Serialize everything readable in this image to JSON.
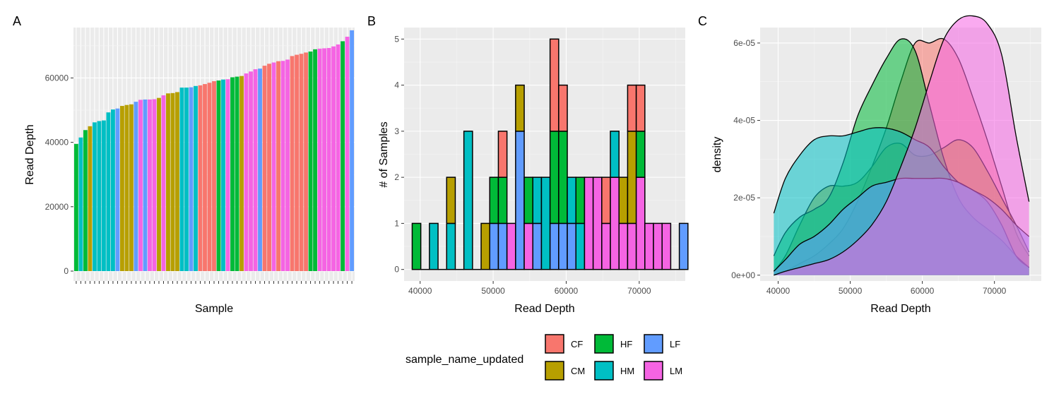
{
  "chart_data": [
    {
      "panel": "A",
      "type": "bar",
      "xlabel": "Sample",
      "ylabel": "Read Depth",
      "ylim": [
        0,
        75000
      ],
      "yticks": [
        0,
        20000,
        40000,
        60000
      ],
      "ytick_labels": [
        "0",
        "20000",
        "40000",
        "60000"
      ],
      "grid": true,
      "values": [
        39500,
        41500,
        43800,
        45000,
        46200,
        46600,
        46800,
        49300,
        50200,
        50500,
        51300,
        51600,
        51800,
        52600,
        53200,
        53300,
        53300,
        53400,
        53800,
        54600,
        55200,
        55300,
        55600,
        57000,
        57000,
        57100,
        57500,
        57700,
        58100,
        58500,
        59000,
        59200,
        59500,
        59600,
        60200,
        60400,
        60600,
        61400,
        62000,
        62700,
        62900,
        63800,
        64400,
        64800,
        65200,
        65300,
        65700,
        66800,
        67200,
        67500,
        67900,
        68200,
        68900,
        69100,
        69200,
        69300,
        69800,
        70400,
        71400,
        72800,
        74800
      ],
      "groups": [
        "HF",
        "HM",
        "HF",
        "CM",
        "HM",
        "HM",
        "HM",
        "HM",
        "HM",
        "LF",
        "CM",
        "CM",
        "CM",
        "LF",
        "LM",
        "LF",
        "LM",
        "LM",
        "CM",
        "LM",
        "CM",
        "CM",
        "CM",
        "HM",
        "HM",
        "LF",
        "HM",
        "CF",
        "CF",
        "CF",
        "CF",
        "HF",
        "HM",
        "LM",
        "HF",
        "HF",
        "CM",
        "LM",
        "LM",
        "LM",
        "LF",
        "CF",
        "CF",
        "LM",
        "CF",
        "LM",
        "LM",
        "CF",
        "CF",
        "CF",
        "CF",
        "HF",
        "HF",
        "LM",
        "LM",
        "LM",
        "LM",
        "LM",
        "HF",
        "LM",
        "LF"
      ]
    },
    {
      "panel": "B",
      "type": "bar",
      "stacked": true,
      "xlabel": "Read Depth",
      "ylabel": "# of Samples",
      "xlim": [
        37800,
        76300
      ],
      "ylim": [
        -0.25,
        5.25
      ],
      "xticks": [
        40000,
        50000,
        60000,
        70000
      ],
      "xtick_labels": [
        "40000",
        "50000",
        "60000",
        "70000"
      ],
      "yticks": [
        0,
        1,
        2,
        3,
        4,
        5
      ],
      "ytick_labels": [
        "0",
        "1",
        "2",
        "3",
        "4",
        "5"
      ],
      "grid": true,
      "bin_width": 1180,
      "bins": [
        {
          "x": 39500,
          "counts": {
            "HF": 1
          }
        },
        {
          "x": 40680,
          "counts": {}
        },
        {
          "x": 41860,
          "counts": {
            "HM": 1
          }
        },
        {
          "x": 43040,
          "counts": {}
        },
        {
          "x": 44220,
          "counts": {
            "HM": 1,
            "CM": 1
          }
        },
        {
          "x": 45400,
          "counts": {}
        },
        {
          "x": 46580,
          "counts": {
            "HM": 3
          }
        },
        {
          "x": 47760,
          "counts": {}
        },
        {
          "x": 48940,
          "counts": {
            "CM": 1
          }
        },
        {
          "x": 50120,
          "counts": {
            "LF": 1,
            "HF": 1
          }
        },
        {
          "x": 51300,
          "counts": {
            "LF": 1,
            "HF": 1,
            "CF": 1
          }
        },
        {
          "x": 52480,
          "counts": {
            "LM": 1
          }
        },
        {
          "x": 53660,
          "counts": {
            "LF": 3,
            "CM": 1
          }
        },
        {
          "x": 54840,
          "counts": {
            "LM": 1,
            "HF": 1
          }
        },
        {
          "x": 56020,
          "counts": {
            "LF": 1,
            "HM": 1
          }
        },
        {
          "x": 57200,
          "counts": {
            "HM": 2
          }
        },
        {
          "x": 58380,
          "counts": {
            "LF": 1,
            "HF": 2,
            "CF": 2
          }
        },
        {
          "x": 59560,
          "counts": {
            "LF": 1,
            "HF": 2,
            "CF": 1
          }
        },
        {
          "x": 60740,
          "counts": {
            "LF": 1,
            "HM": 1
          }
        },
        {
          "x": 61920,
          "counts": {
            "HF": 1,
            "HM": 1
          }
        },
        {
          "x": 63100,
          "counts": {
            "LM": 2
          }
        },
        {
          "x": 64280,
          "counts": {
            "LM": 2
          }
        },
        {
          "x": 65460,
          "counts": {
            "LM": 1,
            "CF": 1
          }
        },
        {
          "x": 66640,
          "counts": {
            "LM": 2,
            "HM": 1
          }
        },
        {
          "x": 67820,
          "counts": {
            "LM": 1,
            "CM": 1
          }
        },
        {
          "x": 69000,
          "counts": {
            "LM": 1,
            "CM": 2,
            "CF": 1
          }
        },
        {
          "x": 70180,
          "counts": {
            "LM": 2,
            "HF": 1,
            "CF": 1
          }
        },
        {
          "x": 71360,
          "counts": {
            "LM": 1
          }
        },
        {
          "x": 72540,
          "counts": {
            "LM": 1
          }
        },
        {
          "x": 73720,
          "counts": {
            "LM": 1
          }
        },
        {
          "x": 74900,
          "counts": {}
        },
        {
          "x": 76080,
          "counts": {
            "LF": 1
          }
        }
      ]
    },
    {
      "panel": "C",
      "type": "area",
      "xlabel": "Read Depth",
      "ylabel": "density",
      "xlim": [
        37500,
        76500
      ],
      "ylim": [
        -1.5e-06,
        6.4e-05
      ],
      "xticks": [
        40000,
        50000,
        60000,
        70000
      ],
      "xtick_labels": [
        "40000",
        "50000",
        "60000",
        "70000"
      ],
      "yticks": [
        0,
        2e-05,
        4e-05,
        6e-05
      ],
      "ytick_labels": [
        "0e+00",
        "2e-05",
        "4e-05",
        "6e-05"
      ],
      "grid": true,
      "x": [
        39400,
        41000,
        43000,
        45000,
        47000,
        49000,
        51000,
        53000,
        55000,
        57000,
        59000,
        61000,
        63000,
        65000,
        67000,
        69000,
        71000,
        73000,
        74800
      ],
      "series": [
        {
          "group": "CF",
          "values": [
            0.0,
            1e-06,
            3e-06,
            5e-06,
            8e-06,
            1.2e-05,
            1.9e-05,
            2.8e-05,
            3.8e-05,
            5e-05,
            6e-05,
            6e-05,
            6.1e-05,
            5.6e-05,
            4.6e-05,
            3.5e-05,
            2.3e-05,
            1.1e-05,
            5e-06
          ]
        },
        {
          "group": "CM",
          "values": [
            1e-06,
            5e-06,
            1.3e-05,
            2e-05,
            2.3e-05,
            2.3e-05,
            2.4e-05,
            2.8e-05,
            3.3e-05,
            3.4e-05,
            3.1e-05,
            3.1e-05,
            3.3e-05,
            3.5e-05,
            3.3e-05,
            2.7e-05,
            2e-05,
            1.3e-05,
            6e-06
          ]
        },
        {
          "group": "HF",
          "values": [
            5e-06,
            1.1e-05,
            1.5e-05,
            1.7e-05,
            2e-05,
            2.9e-05,
            4.1e-05,
            4.9e-05,
            5.6e-05,
            6.1e-05,
            5.8e-05,
            4.4e-05,
            3e-05,
            2e-05,
            1.5e-05,
            1.2e-05,
            9e-06,
            5e-06,
            2e-06
          ]
        },
        {
          "group": "HM",
          "values": [
            1.6e-05,
            2.5e-05,
            3.1e-05,
            3.5e-05,
            3.6e-05,
            3.6e-05,
            3.7e-05,
            3.8e-05,
            3.8e-05,
            3.7e-05,
            3.5e-05,
            3.3e-05,
            2.8e-05,
            2.4e-05,
            2.2e-05,
            1.9e-05,
            1.3e-05,
            5e-06,
            2e-06
          ]
        },
        {
          "group": "LF",
          "values": [
            1e-06,
            4e-06,
            8e-06,
            1e-05,
            1.3e-05,
            1.7e-05,
            2e-05,
            2.3e-05,
            2.4e-05,
            2.5e-05,
            2.5e-05,
            2.5e-05,
            2.5e-05,
            2.4e-05,
            2.2e-05,
            2e-05,
            1.7e-05,
            1.3e-05,
            1e-05
          ]
        },
        {
          "group": "LM",
          "values": [
            0.0,
            1e-06,
            2e-06,
            3e-06,
            4e-06,
            6e-06,
            9e-06,
            1.3e-05,
            1.9e-05,
            2.8e-05,
            3.8e-05,
            5e-05,
            6.1e-05,
            6.6e-05,
            6.7e-05,
            6.5e-05,
            5.7e-05,
            3.6e-05,
            1.9e-05
          ]
        }
      ]
    }
  ],
  "legend": {
    "title": "sample_name_updated",
    "items": [
      {
        "key": "CF",
        "label": "CF",
        "color": "#F8766D"
      },
      {
        "key": "CM",
        "label": "CM",
        "color": "#B79F00"
      },
      {
        "key": "HF",
        "label": "HF",
        "color": "#00BA38"
      },
      {
        "key": "HM",
        "label": "HM",
        "color": "#00BFC4"
      },
      {
        "key": "LF",
        "label": "LF",
        "color": "#619CFF"
      },
      {
        "key": "LM",
        "label": "LM",
        "color": "#F564E3"
      }
    ]
  },
  "panel_tags": {
    "a": "A",
    "b": "B",
    "c": "C"
  }
}
